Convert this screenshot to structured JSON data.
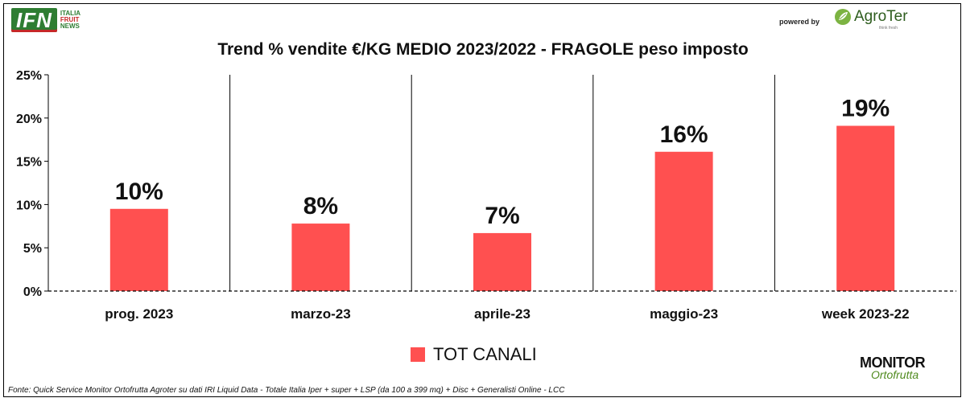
{
  "header": {
    "ifn_logo": "IFN",
    "ifn_sub": [
      "ITALIA",
      "FRUIT",
      "NEWS"
    ],
    "powered_by": "powered by",
    "agroter_name": "AgroTer",
    "agroter_tagline": "think fresh"
  },
  "chart_data": {
    "type": "bar",
    "title": "Trend % vendite €/KG MEDIO 2023/2022 - FRAGOLE peso imposto",
    "categories": [
      "prog. 2023",
      "marzo-23",
      "aprile-23",
      "maggio-23",
      "week 2023-22"
    ],
    "series": [
      {
        "name": "TOT CANALI",
        "values": [
          9.5,
          7.8,
          6.7,
          16.1,
          19.1
        ],
        "labels": [
          "10%",
          "8%",
          "7%",
          "16%",
          "19%"
        ]
      }
    ],
    "ylim": [
      0,
      25
    ],
    "yticks": [
      "0%",
      "5%",
      "10%",
      "15%",
      "20%",
      "25%"
    ],
    "grid": false,
    "legend": "bottom",
    "bar_color": "#ff5050"
  },
  "footer": {
    "monitor_logo_top": "MONITOR",
    "monitor_logo_bottom": "Ortofrutta",
    "source": "Fonte: Quick Service Monitor Ortofrutta Agroter su dati IRI Liquid Data - Totale Italia Iper + super + LSP (da 100 a 399 mq) + Disc + Generalisti Online - LCC"
  }
}
